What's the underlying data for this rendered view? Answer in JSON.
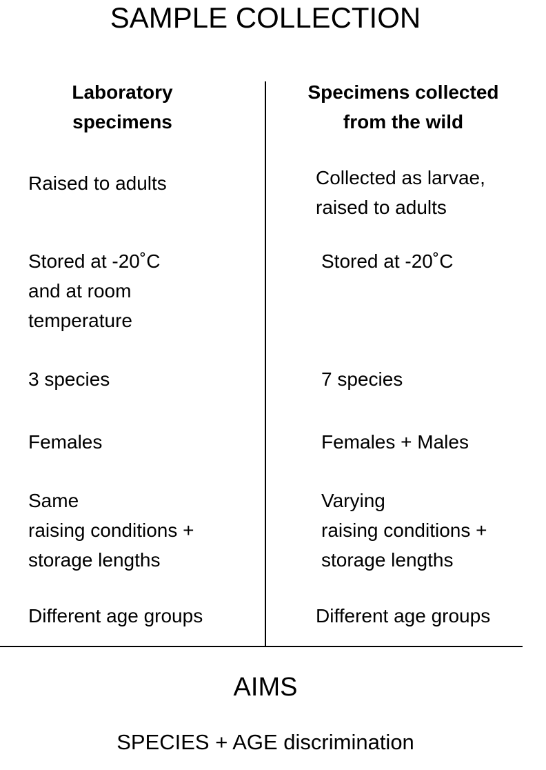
{
  "title": "SAMPLE COLLECTION",
  "left": {
    "heading_line1": "Laboratory",
    "heading_line2": "specimens",
    "rows": [
      [
        "Raised to adults"
      ],
      [
        "Stored at -20˚C",
        "and at room",
        "temperature"
      ],
      [
        "3 species"
      ],
      [
        "Females"
      ],
      [
        "Same",
        "raising conditions +",
        "storage lengths"
      ],
      [
        "Different age groups"
      ]
    ]
  },
  "right": {
    "heading_line1": "Specimens collected",
    "heading_line2": "from the wild",
    "rows": [
      [
        "Collected as larvae,",
        "raised to adults"
      ],
      [
        "Stored at -20˚C"
      ],
      [
        "7 species"
      ],
      [
        "Females + Males"
      ],
      [
        "Varying",
        "raising conditions +",
        "storage lengths"
      ],
      [
        "Different age groups"
      ]
    ]
  },
  "aims": {
    "heading": "AIMS",
    "text": "SPECIES + AGE discrimination"
  }
}
